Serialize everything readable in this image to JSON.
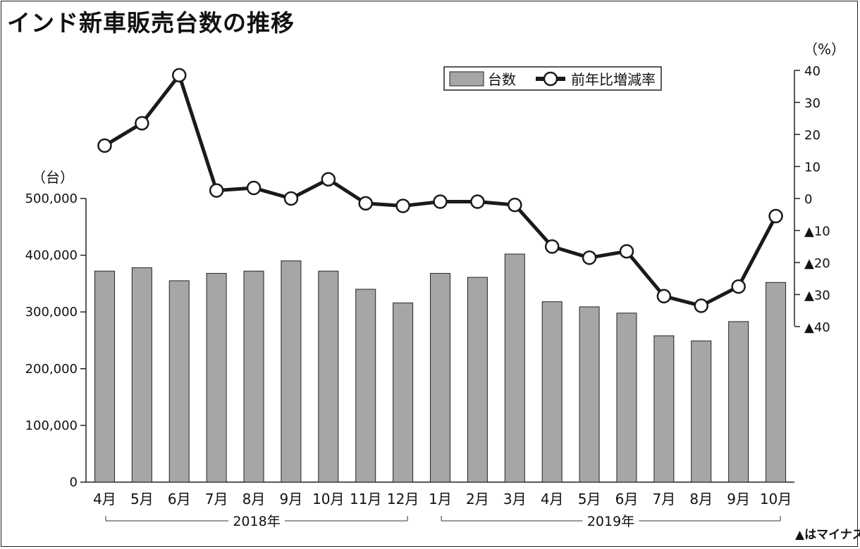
{
  "title": "インド新車販売台数の推移",
  "left_unit": "（台）",
  "right_unit": "（%）",
  "note": "▲はマイナス",
  "legend": {
    "bar_label": "台数",
    "line_label": "前年比増減率"
  },
  "colors": {
    "bar_fill": "#a6a6a6",
    "line": "#1a1a1a",
    "marker_fill": "#ffffff"
  },
  "chart_data": {
    "type": "bar",
    "categories": [
      "4月",
      "5月",
      "6月",
      "7月",
      "8月",
      "9月",
      "10月",
      "11月",
      "12月",
      "1月",
      "2月",
      "3月",
      "4月",
      "5月",
      "6月",
      "7月",
      "8月",
      "9月",
      "10月"
    ],
    "years": [
      {
        "label": "2018年",
        "from": 0,
        "to": 8
      },
      {
        "label": "2019年",
        "from": 9,
        "to": 18
      }
    ],
    "series": [
      {
        "name": "台数",
        "axis": "left",
        "type": "bar",
        "values": [
          372000,
          378000,
          355000,
          368000,
          372000,
          390000,
          372000,
          340000,
          316000,
          368000,
          361000,
          402000,
          318000,
          309000,
          298000,
          258000,
          249000,
          283000,
          352000
        ]
      },
      {
        "name": "前年比増減率",
        "axis": "right",
        "type": "line",
        "values": [
          16.5,
          23.5,
          38.5,
          2.5,
          3.3,
          0,
          6,
          -1.5,
          -2.3,
          -1,
          -1,
          -2,
          -15,
          -18.5,
          -16.5,
          -30.5,
          -33.5,
          -27.5,
          -5.5
        ]
      }
    ],
    "left_axis": {
      "ylim": [
        0,
        500000
      ],
      "ticks": [
        "0",
        "100,000",
        "200,000",
        "300,000",
        "400,000",
        "500,000"
      ]
    },
    "right_axis": {
      "ylim": [
        -40,
        40
      ],
      "ticks": [
        "▲40",
        "▲30",
        "▲20",
        "▲10",
        "0",
        "10",
        "20",
        "30",
        "40"
      ]
    }
  }
}
